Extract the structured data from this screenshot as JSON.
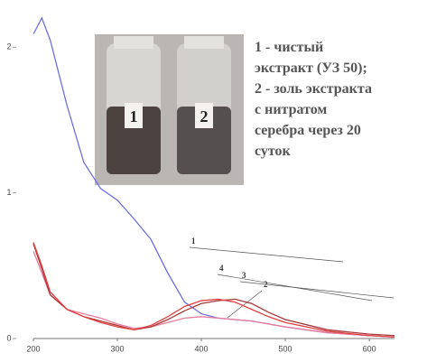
{
  "chart_data": {
    "type": "line",
    "x": [
      200,
      210,
      220,
      240,
      260,
      280,
      300,
      320,
      340,
      360,
      380,
      400,
      420,
      440,
      460,
      480,
      500,
      550,
      600,
      630
    ],
    "series": [
      {
        "name": "1",
        "color": "#6f6fe0",
        "values": [
          2.09,
          2.2,
          2.05,
          1.6,
          1.21,
          1.03,
          0.95,
          0.82,
          0.68,
          0.45,
          0.25,
          0.17,
          0.14,
          0.13,
          0.12,
          0.1,
          0.08,
          0.04,
          0.02,
          0.01
        ]
      },
      {
        "name": "2",
        "color": "#e87a9a",
        "values": [
          0.6,
          0.45,
          0.3,
          0.2,
          0.17,
          0.14,
          0.1,
          0.07,
          0.08,
          0.11,
          0.14,
          0.15,
          0.14,
          0.13,
          0.12,
          0.1,
          0.08,
          0.04,
          0.02,
          0.01
        ]
      },
      {
        "name": "3",
        "color": "#a83838",
        "values": [
          0.65,
          0.48,
          0.3,
          0.2,
          0.15,
          0.12,
          0.09,
          0.06,
          0.08,
          0.13,
          0.19,
          0.24,
          0.26,
          0.27,
          0.24,
          0.18,
          0.13,
          0.06,
          0.03,
          0.02
        ]
      },
      {
        "name": "4",
        "color": "#e04040",
        "values": [
          0.66,
          0.5,
          0.32,
          0.2,
          0.15,
          0.11,
          0.08,
          0.06,
          0.09,
          0.15,
          0.22,
          0.26,
          0.27,
          0.25,
          0.2,
          0.15,
          0.11,
          0.05,
          0.02,
          0.01
        ]
      }
    ],
    "xlim": [
      200,
      630
    ],
    "ylim": [
      0,
      2.2
    ],
    "xticks": [
      200,
      300,
      400,
      500,
      600
    ],
    "yticks": [
      0,
      1,
      2
    ],
    "photo_labels": [
      "1",
      "2"
    ],
    "caption_lines": [
      "1 - чистый",
      "экстракт (УЗ 50);",
      "2 - золь экстракта",
      "с нитратом",
      "серебра через 20",
      "суток"
    ]
  }
}
